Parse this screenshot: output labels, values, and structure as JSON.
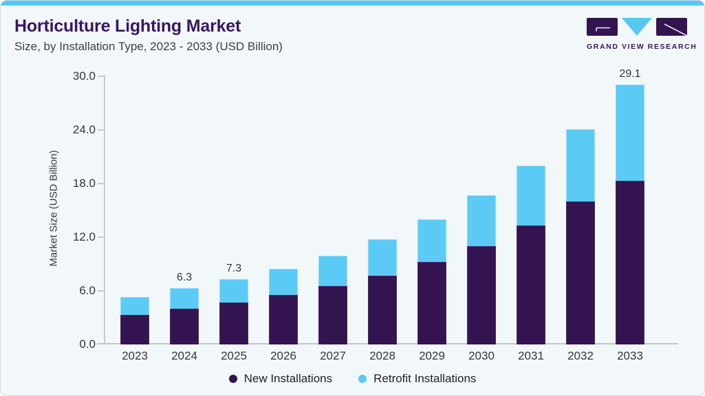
{
  "header": {
    "title": "Horticulture Lighting Market",
    "subtitle": "Size, by Installation Type, 2023 - 2033 (USD Billion)"
  },
  "logo": {
    "text": "GRAND VIEW RESEARCH"
  },
  "colors": {
    "accent_bar": "#56c7f2",
    "card_background": "#f2f7fa",
    "title_purple": "#3a1663",
    "axis_gray": "#c5cbd3",
    "series_purple": "#331450",
    "series_blue": "#5bcaf5"
  },
  "chart_data": {
    "type": "bar",
    "stacked": true,
    "title": "Horticulture Lighting Market Size, by Installation Type, 2023 - 2033 (USD Billion)",
    "categories": [
      "2023",
      "2024",
      "2025",
      "2026",
      "2027",
      "2028",
      "2029",
      "2030",
      "2031",
      "2032",
      "2033"
    ],
    "series": [
      {
        "name": "New Installations",
        "color": "#331450",
        "values": [
          3.3,
          4.0,
          4.7,
          5.5,
          6.5,
          7.7,
          9.2,
          11.0,
          13.3,
          16.0,
          18.3
        ]
      },
      {
        "name": "Retrofit Installations",
        "color": "#5bcaf5",
        "values": [
          2.0,
          2.3,
          2.6,
          2.9,
          3.4,
          4.1,
          4.8,
          5.7,
          6.7,
          8.1,
          10.8
        ]
      }
    ],
    "totals": [
      5.3,
      6.3,
      7.3,
      8.4,
      9.9,
      11.8,
      14.0,
      16.7,
      20.0,
      24.1,
      29.1
    ],
    "bar_labels": [
      "",
      "6.3",
      "7.3",
      "",
      "",
      "",
      "",
      "",
      "",
      "",
      "29.1"
    ],
    "xlabel": "",
    "ylabel": "Market Size (USD Billion)",
    "ylim": [
      0,
      30
    ],
    "yticks": [
      "0.0",
      "6.0",
      "12.0",
      "18.0",
      "24.0",
      "30.0"
    ],
    "grid": false,
    "legend_position": "bottom"
  }
}
